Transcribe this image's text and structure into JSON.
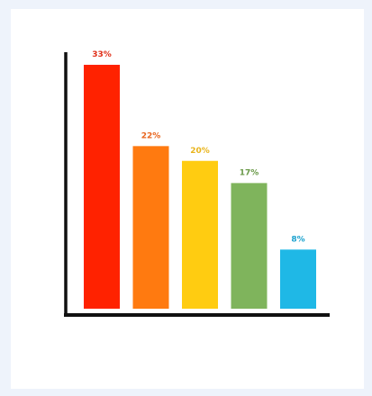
{
  "chart_data": {
    "type": "bar",
    "categories": [
      "",
      "",
      "",
      "",
      ""
    ],
    "values": [
      33,
      22,
      20,
      17,
      8
    ],
    "value_labels": [
      "33%",
      "22%",
      "20%",
      "17%",
      "8%"
    ],
    "colors": [
      "#ff2200",
      "#ff7a10",
      "#ffcc11",
      "#7fb45c",
      "#1fb8e6"
    ],
    "label_colors": [
      "#e0301a",
      "#e8641c",
      "#e9b41c",
      "#6b9a4a",
      "#1ea3cf"
    ],
    "title": "",
    "xlabel": "",
    "ylabel": "",
    "ylim": [
      0,
      33
    ],
    "grid": false,
    "legend": "none"
  }
}
